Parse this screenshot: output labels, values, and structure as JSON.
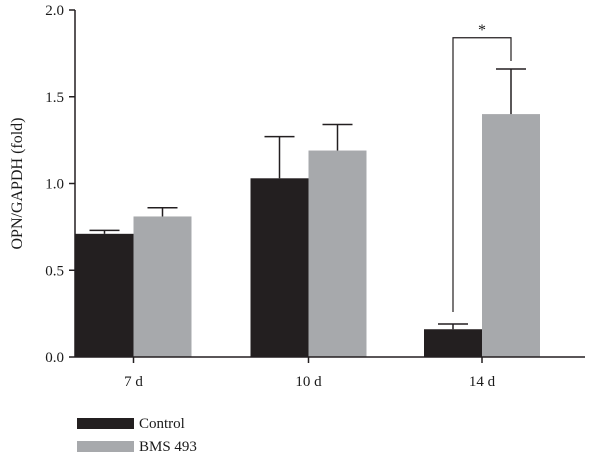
{
  "chart_data": {
    "type": "bar",
    "categories": [
      "7 d",
      "10 d",
      "14 d"
    ],
    "series": [
      {
        "name": "Control",
        "color": "#231f20",
        "values": [
          0.71,
          1.03,
          0.16
        ],
        "errors": [
          0.02,
          0.24,
          0.03
        ]
      },
      {
        "name": "BMS 493",
        "color": "#a7a9ac",
        "values": [
          0.81,
          1.19,
          1.4
        ],
        "errors": [
          0.05,
          0.15,
          0.26
        ]
      }
    ],
    "title": "",
    "xlabel": "",
    "ylabel": "OPN/GAPDH (fold)",
    "ylim": [
      0,
      2.0
    ],
    "yticks": [
      0.0,
      0.5,
      1.0,
      1.5,
      2.0
    ],
    "ytick_labels": [
      "0.0",
      "0.5",
      "1.0",
      "1.5",
      "2.0"
    ],
    "grid": false,
    "legend_position": "bottom-left",
    "annotations": [
      {
        "text": "*",
        "category": "14 d",
        "between_series": [
          "Control",
          "BMS 493"
        ],
        "bracket_level": 1.84
      }
    ]
  }
}
